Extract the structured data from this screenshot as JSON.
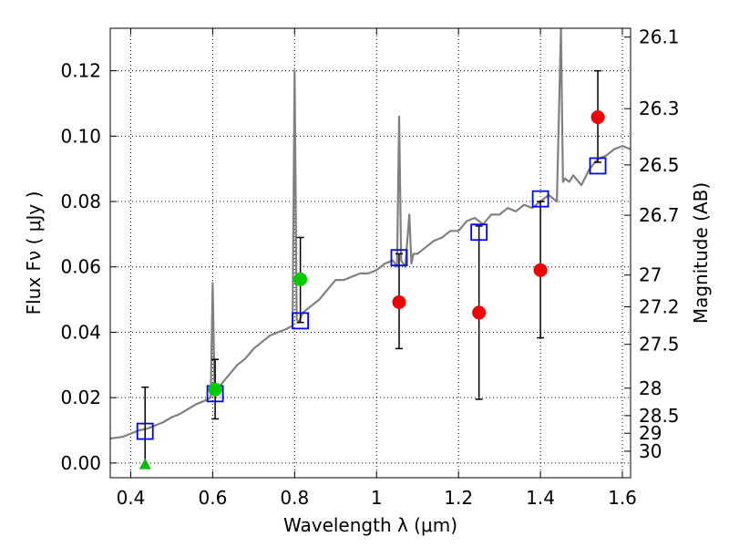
{
  "chart_data": {
    "type": "scatter",
    "xlabel": "Wavelength  λ (μm)",
    "ylabel": "Flux  Fν  ( μJy )",
    "y2label": "Magnitude (AB)",
    "xlim": [
      0.35,
      1.62
    ],
    "ylim": [
      -0.0045,
      0.133
    ],
    "grid": true,
    "x_ticks": [
      0.4,
      0.6,
      0.8,
      1.0,
      1.2,
      1.4,
      1.6
    ],
    "x_tick_labels": [
      "0.4",
      "0.6",
      "0.8",
      "1",
      "1.2",
      "1.4",
      "1.6"
    ],
    "y_ticks": [
      0.0,
      0.02,
      0.04,
      0.06,
      0.08,
      0.1,
      0.12
    ],
    "y_tick_labels": [
      "0.00",
      "0.02",
      "0.04",
      "0.06",
      "0.08",
      "0.10",
      "0.12"
    ],
    "magnitude_ticks": [
      {
        "label": "26.1",
        "flux": 0.1303
      },
      {
        "label": "26.3",
        "flux": 0.1084
      },
      {
        "label": "26.5",
        "flux": 0.0912
      },
      {
        "label": "26.7",
        "flux": 0.0758
      },
      {
        "label": "27",
        "flux": 0.0575
      },
      {
        "label": "27.2",
        "flux": 0.0478
      },
      {
        "label": "27.5",
        "flux": 0.0363
      },
      {
        "label": "28",
        "flux": 0.0229
      },
      {
        "label": "28.5",
        "flux": 0.0145
      },
      {
        "label": "29",
        "flux": 0.0091
      },
      {
        "label": "30",
        "flux": 0.0036
      }
    ],
    "series": [
      {
        "kind": "model_spectrum",
        "color": "#808080",
        "x": [
          0.35,
          0.38,
          0.4,
          0.42,
          0.44,
          0.46,
          0.48,
          0.5,
          0.52,
          0.54,
          0.56,
          0.58,
          0.595,
          0.6,
          0.605,
          0.61,
          0.62,
          0.64,
          0.66,
          0.68,
          0.7,
          0.72,
          0.74,
          0.76,
          0.78,
          0.795,
          0.8,
          0.805,
          0.81,
          0.82,
          0.84,
          0.86,
          0.88,
          0.9,
          0.92,
          0.94,
          0.96,
          0.98,
          1.0,
          1.02,
          1.04,
          1.05,
          1.055,
          1.06,
          1.07,
          1.08,
          1.085,
          1.09,
          1.1,
          1.12,
          1.14,
          1.16,
          1.18,
          1.2,
          1.22,
          1.24,
          1.26,
          1.28,
          1.3,
          1.32,
          1.34,
          1.36,
          1.38,
          1.4,
          1.42,
          1.44,
          1.45,
          1.455,
          1.46,
          1.47,
          1.48,
          1.5,
          1.52,
          1.54,
          1.56,
          1.58,
          1.6,
          1.62
        ],
        "y": [
          0.0075,
          0.008,
          0.009,
          0.01,
          0.0105,
          0.0115,
          0.0125,
          0.014,
          0.015,
          0.0165,
          0.018,
          0.019,
          0.02,
          0.055,
          0.021,
          0.022,
          0.024,
          0.027,
          0.03,
          0.032,
          0.035,
          0.037,
          0.039,
          0.04,
          0.041,
          0.042,
          0.12,
          0.044,
          0.043,
          0.046,
          0.048,
          0.05,
          0.053,
          0.056,
          0.056,
          0.057,
          0.058,
          0.058,
          0.059,
          0.061,
          0.062,
          0.06,
          0.106,
          0.062,
          0.06,
          0.076,
          0.061,
          0.064,
          0.064,
          0.066,
          0.068,
          0.069,
          0.071,
          0.071,
          0.074,
          0.075,
          0.073,
          0.076,
          0.076,
          0.078,
          0.077,
          0.079,
          0.078,
          0.08,
          0.082,
          0.08,
          0.133,
          0.086,
          0.087,
          0.086,
          0.088,
          0.085,
          0.09,
          0.093,
          0.094,
          0.096,
          0.097,
          0.096
        ]
      },
      {
        "kind": "model_photometry",
        "marker": "open-square",
        "color": "#0000ff",
        "x": [
          0.435,
          0.606,
          0.814,
          1.055,
          1.25,
          1.4,
          1.54
        ],
        "y": [
          0.0097,
          0.0212,
          0.0435,
          0.0628,
          0.0706,
          0.0808,
          0.0909
        ]
      },
      {
        "kind": "observed_upper_limit",
        "marker": "triangle",
        "color": "#00bb00",
        "x": [
          0.435
        ],
        "y": [
          -0.0005
        ],
        "yerr_low": [
          0.0
        ],
        "yerr_high": [
          0.0237
        ]
      },
      {
        "kind": "observed_optical",
        "marker": "circle",
        "color": "#00cc00",
        "x": [
          0.606,
          0.814
        ],
        "y": [
          0.0225,
          0.0562
        ],
        "yerr_low": [
          0.009,
          0.0132
        ],
        "yerr_high": [
          0.0092,
          0.0128
        ]
      },
      {
        "kind": "observed_infrared",
        "marker": "circle",
        "color": "#ee0000",
        "x": [
          1.055,
          1.25,
          1.4,
          1.54
        ],
        "y": [
          0.0492,
          0.046,
          0.059,
          0.1058
        ],
        "yerr_low": [
          0.0142,
          0.0265,
          0.0207,
          0.0138
        ],
        "yerr_high": [
          0.0148,
          0.0265,
          0.021,
          0.0142
        ]
      }
    ]
  }
}
